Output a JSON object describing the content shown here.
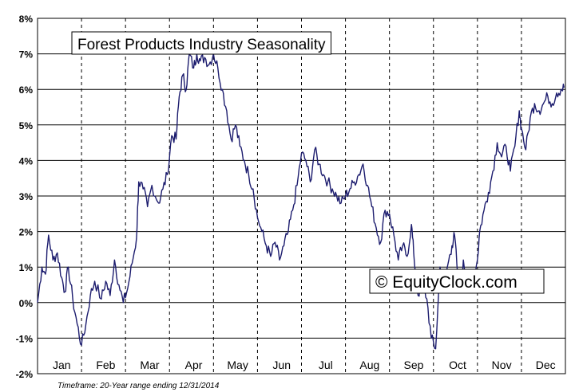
{
  "chart_data": {
    "type": "line",
    "title": "Forest Products Industry Seasonality",
    "watermark": "© EquityClock.com",
    "footnote": "Timeframe: 20-Year range ending 12/31/2014",
    "xlabel": "",
    "ylabel": "",
    "ylim": [
      -2,
      8
    ],
    "yticks": [
      8,
      7,
      6,
      5,
      4,
      3,
      2,
      1,
      0,
      -1,
      -2
    ],
    "ytick_labels": [
      "8%",
      "7%",
      "6%",
      "5%",
      "4%",
      "3%",
      "2%",
      "1%",
      "0%",
      "-1%",
      "-2%"
    ],
    "months": [
      "Jan",
      "Feb",
      "Mar",
      "Apr",
      "May",
      "Jun",
      "Jul",
      "Aug",
      "Sep",
      "Oct",
      "Nov",
      "Dec"
    ],
    "grid": true,
    "line_color": "#1c1c6e",
    "series": [
      {
        "x": [
          0,
          0.1,
          0.18,
          0.25,
          0.35,
          0.45,
          0.55,
          0.62,
          0.7,
          0.8,
          0.9,
          1.0,
          1.1,
          1.2,
          1.3,
          1.45,
          1.55,
          1.65,
          1.75,
          1.85,
          1.95,
          2.05,
          2.15,
          2.25,
          2.3,
          2.4,
          2.5,
          2.6,
          2.75,
          2.85,
          2.95,
          3.05,
          3.15,
          3.22,
          3.3,
          3.38,
          3.45,
          3.55,
          3.62,
          3.7,
          3.8,
          3.9,
          4.0,
          4.1,
          4.2,
          4.3,
          4.4,
          4.5,
          4.6,
          4.7,
          4.8,
          4.9,
          5.0,
          5.1,
          5.2,
          5.3,
          5.4,
          5.5,
          5.6,
          5.7,
          5.8,
          5.9,
          6.0,
          6.1,
          6.2,
          6.3,
          6.4,
          6.5,
          6.6,
          6.7,
          6.8,
          6.9,
          7.0,
          7.1,
          7.2,
          7.3,
          7.4,
          7.5,
          7.6,
          7.7,
          7.8,
          7.9,
          8.0,
          8.1,
          8.2,
          8.3,
          8.4,
          8.5,
          8.55,
          8.65,
          8.75,
          8.85,
          8.95,
          9.05,
          9.15,
          9.25,
          9.35,
          9.42,
          9.48,
          9.55,
          9.62,
          9.68,
          9.75,
          9.82,
          9.9,
          10.0,
          10.05,
          10.15,
          10.25,
          10.35,
          10.45,
          10.55,
          10.65,
          10.75,
          10.85,
          10.95,
          11.0,
          11.1,
          11.2,
          11.3,
          11.4,
          11.5,
          11.6,
          11.7,
          11.8,
          11.9,
          11.97
        ],
        "y": [
          0.0,
          1.0,
          0.8,
          1.9,
          1.2,
          1.4,
          0.7,
          0.3,
          1.0,
          0.1,
          -0.6,
          -1.2,
          -0.6,
          0.2,
          0.6,
          0.1,
          0.6,
          0.2,
          1.2,
          0.5,
          0.0,
          0.4,
          1.1,
          1.8,
          3.4,
          3.2,
          2.7,
          3.3,
          2.8,
          3.2,
          3.6,
          4.7,
          4.6,
          5.8,
          6.4,
          6.0,
          7.0,
          6.6,
          7.0,
          6.8,
          6.9,
          6.7,
          7.0,
          6.6,
          6.0,
          5.4,
          4.6,
          5.0,
          4.4,
          4.0,
          3.6,
          3.2,
          2.4,
          2.0,
          1.6,
          1.3,
          1.7,
          1.2,
          1.6,
          2.0,
          2.6,
          3.3,
          4.2,
          4.0,
          3.4,
          4.3,
          3.9,
          3.6,
          3.4,
          3.2,
          3.0,
          2.8,
          3.0,
          3.2,
          3.4,
          3.6,
          3.9,
          3.3,
          2.7,
          2.1,
          1.7,
          2.6,
          2.5,
          1.9,
          1.2,
          1.6,
          1.3,
          2.2,
          1.4,
          0.2,
          0.6,
          0.1,
          -1.0,
          -1.3,
          1.0,
          0.6,
          1.2,
          1.6,
          1.9,
          0.8,
          0.4,
          1.2,
          0.8,
          0.3,
          0.6,
          1.2,
          2.0,
          2.6,
          3.1,
          3.7,
          4.5,
          4.1,
          4.4,
          3.7,
          4.4,
          5.4,
          4.9,
          4.3,
          5.2,
          5.6,
          5.4,
          5.6,
          5.8,
          5.6,
          5.9,
          6.0,
          6.05
        ]
      }
    ]
  }
}
